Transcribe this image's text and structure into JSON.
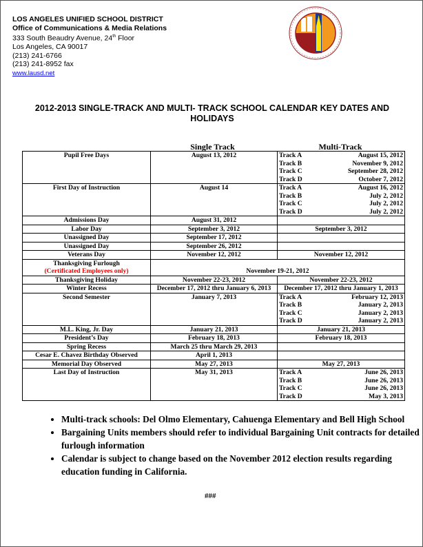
{
  "header": {
    "org": "LOS ANGELES UNIFIED SCHOOL DISTRICT",
    "office": "Office of Communications & Media Relations",
    "address1_pre": "333 South Beaudry Avenue, 24",
    "address1_sup": "th",
    "address1_post": " Floor",
    "address2": "Los Angeles, CA 90017",
    "phone": "(213) 241-6766",
    "fax": "(213) 241-8952 fax",
    "website": "www.lausd.net"
  },
  "seal": {
    "text": "LOS ANGELES UNIFIED SCHOOL DISTRICT · BOARD OF EDUCATION",
    "colors": {
      "orange": "#f39a1e",
      "maroon": "#9b1b1f",
      "yellow": "#ffe600",
      "blue": "#1c3a8a"
    }
  },
  "title": "2012-2013 SINGLE-TRACK AND MULTI- TRACK SCHOOL CALENDAR KEY DATES AND HOLIDAYS",
  "columns": {
    "single": "Single Track",
    "multi": "Multi-Track"
  },
  "rows": [
    {
      "label": "Pupil Free Days",
      "single": "August 13, 2012",
      "tracks": [
        [
          "Track A",
          "August 15, 2012"
        ],
        [
          "Track B",
          "November 9, 2012"
        ],
        [
          "Track C",
          "September 28, 2012"
        ],
        [
          "Track D",
          "October 7, 2012"
        ]
      ]
    },
    {
      "label": "First Day of Instruction",
      "single": "August 14",
      "tracks": [
        [
          "Track A",
          "August 16, 2012"
        ],
        [
          "Track B",
          "July 2, 2012"
        ],
        [
          "Track C",
          "July 2, 2012"
        ],
        [
          "Track D",
          "July 2, 2012"
        ]
      ]
    },
    {
      "label": "Admissions Day",
      "single": "August 31, 2012",
      "multi": ""
    },
    {
      "label": "Labor Day",
      "single": "September 3, 2012",
      "multi": "September 3, 2012"
    },
    {
      "label": "Unassigned Day",
      "single": "September 17, 2012",
      "multi": ""
    },
    {
      "label": "Unassigned Day",
      "single": "September 26, 2012",
      "multi": ""
    },
    {
      "label": "Veterans Day",
      "single": "November 12, 2012",
      "multi": "November 12, 2012"
    },
    {
      "label": "Thanksgiving Furlough",
      "note": "(Certificated Employees only)",
      "span": "November 19-21, 2012"
    },
    {
      "label": "Thanksgiving Holiday",
      "single": "November 22-23, 2012",
      "multi": "November 22-23, 2012"
    },
    {
      "label": "Winter Recess",
      "single": "December 17, 2012 thru January 6, 2013",
      "multi": "December 17, 2012 thru January 1, 2013"
    },
    {
      "label": "Second Semester",
      "single": "January 7, 2013",
      "tracks": [
        [
          "Track A",
          "February 12, 2013"
        ],
        [
          "Track B",
          "January 2, 2013"
        ],
        [
          "Track C",
          "January 2, 2013"
        ],
        [
          "Track D",
          "January 2, 2013"
        ]
      ]
    },
    {
      "label": "M.L. King, Jr. Day",
      "single": "January 21, 2013",
      "multi": "January 21, 2013"
    },
    {
      "label": "President’s Day",
      "single": "February 18, 2013",
      "multi": "February 18, 2013"
    },
    {
      "label": "Spring Recess",
      "single": "March 25 thru March 29, 2013",
      "multi": ""
    },
    {
      "label": "Cesar E. Chavez Birthday Observed",
      "single": "April 1, 2013",
      "multi": ""
    },
    {
      "label": "Memorial Day Observed",
      "single": "May 27, 2013",
      "multi": "May 27, 2013"
    },
    {
      "label": "Last Day of Instruction",
      "single": "May 31, 2013",
      "tracks": [
        [
          "Track A",
          "June 26, 2013"
        ],
        [
          "Track B",
          "June 26, 2013"
        ],
        [
          "Track C",
          "June 26, 2013"
        ],
        [
          "Track D",
          "May 3, 2013"
        ]
      ]
    }
  ],
  "bullets": [
    "Multi-track schools: Del Olmo Elementary, Cahuenga Elementary and Bell High School",
    "Bargaining Units members should refer to individual Bargaining Unit contracts for detailed furlough information",
    "Calendar is subject to change based on the November 2012 election results regarding education funding in California."
  ],
  "end_mark": "###"
}
